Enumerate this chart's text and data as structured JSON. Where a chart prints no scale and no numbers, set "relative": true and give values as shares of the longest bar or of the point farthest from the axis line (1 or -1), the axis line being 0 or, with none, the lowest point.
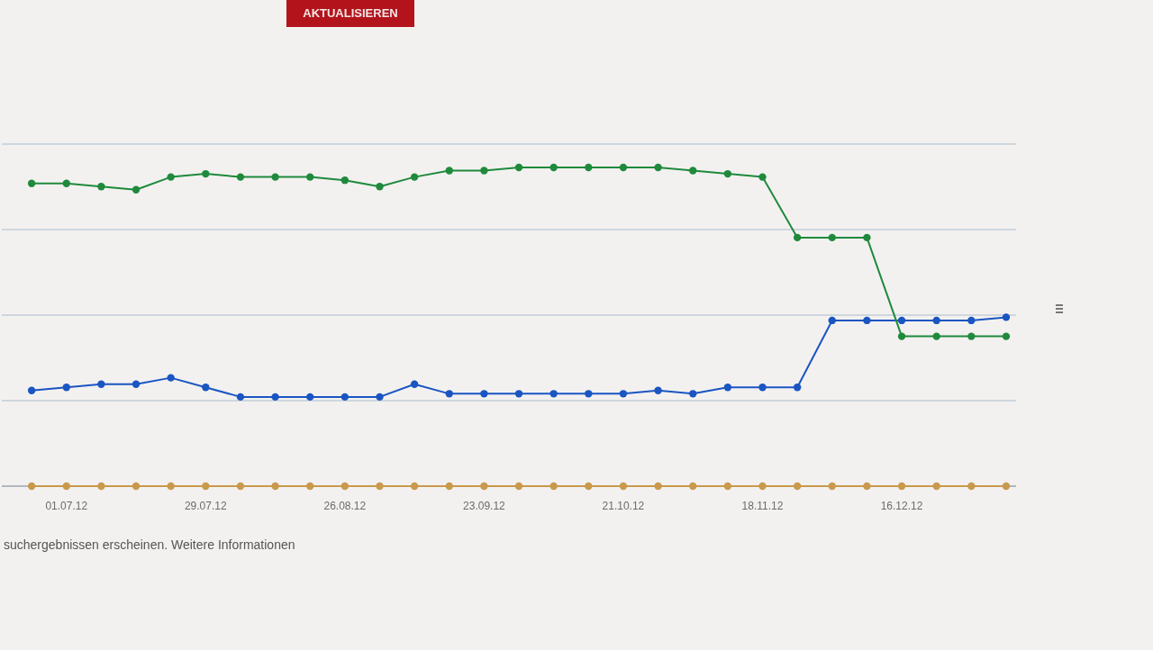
{
  "chart_data": {
    "type": "line",
    "relative": true,
    "x": [
      "2012-06-24",
      "2012-07-01",
      "2012-07-08",
      "2012-07-15",
      "2012-07-22",
      "2012-07-29",
      "2012-08-05",
      "2012-08-12",
      "2012-08-19",
      "2012-08-26",
      "2012-09-02",
      "2012-09-09",
      "2012-09-16",
      "2012-09-23",
      "2012-09-30",
      "2012-10-07",
      "2012-10-14",
      "2012-10-21",
      "2012-10-28",
      "2012-11-04",
      "2012-11-11",
      "2012-11-18",
      "2012-11-25",
      "2012-12-02",
      "2012-12-09",
      "2012-12-16",
      "2012-12-23",
      "2012-12-30",
      "2013-01-06"
    ],
    "series": [
      {
        "color": "#c9994c",
        "values": [
          0,
          0,
          0,
          0,
          0,
          0,
          0,
          0,
          0,
          0,
          0,
          0,
          0,
          0,
          0,
          0,
          0,
          0,
          0,
          0,
          0,
          0,
          0,
          0,
          0,
          0,
          0,
          0,
          0
        ]
      },
      {
        "color": "#1a55c2",
        "values": [
          0.3,
          0.31,
          0.32,
          0.32,
          0.34,
          0.31,
          0.28,
          0.28,
          0.28,
          0.28,
          0.28,
          0.32,
          0.29,
          0.29,
          0.29,
          0.29,
          0.29,
          0.29,
          0.3,
          0.29,
          0.31,
          0.31,
          0.31,
          0.52,
          0.52,
          0.52,
          0.52,
          0.52,
          0.53
        ]
      },
      {
        "color": "#1f8a3c",
        "values": [
          0.95,
          0.95,
          0.94,
          0.93,
          0.97,
          0.98,
          0.97,
          0.97,
          0.97,
          0.96,
          0.94,
          0.97,
          0.99,
          0.99,
          1,
          1,
          1,
          1,
          1,
          0.99,
          0.98,
          0.97,
          0.78,
          0.78,
          0.78,
          0.47,
          0.47,
          0.47,
          0.47
        ]
      }
    ],
    "xlim": [
      "2012-06-18",
      "2013-01-08"
    ],
    "xticks": [
      {
        "value": "2012-07-01",
        "label": "01.07.12"
      },
      {
        "value": "2012-07-29",
        "label": "29.07.12"
      },
      {
        "value": "2012-08-26",
        "label": "26.08.12"
      },
      {
        "value": "2012-09-23",
        "label": "23.09.12"
      },
      {
        "value": "2012-10-21",
        "label": "21.10.12"
      },
      {
        "value": "2012-11-18",
        "label": "18.11.12"
      },
      {
        "value": "2012-12-16",
        "label": "16.12.12"
      }
    ],
    "grid": "y",
    "marker": "circle",
    "line_style": "solid",
    "annotations": [
      "AKTUALISIEREN",
      "suchergebnissen erscheinen. Weitere Informationen"
    ]
  }
}
